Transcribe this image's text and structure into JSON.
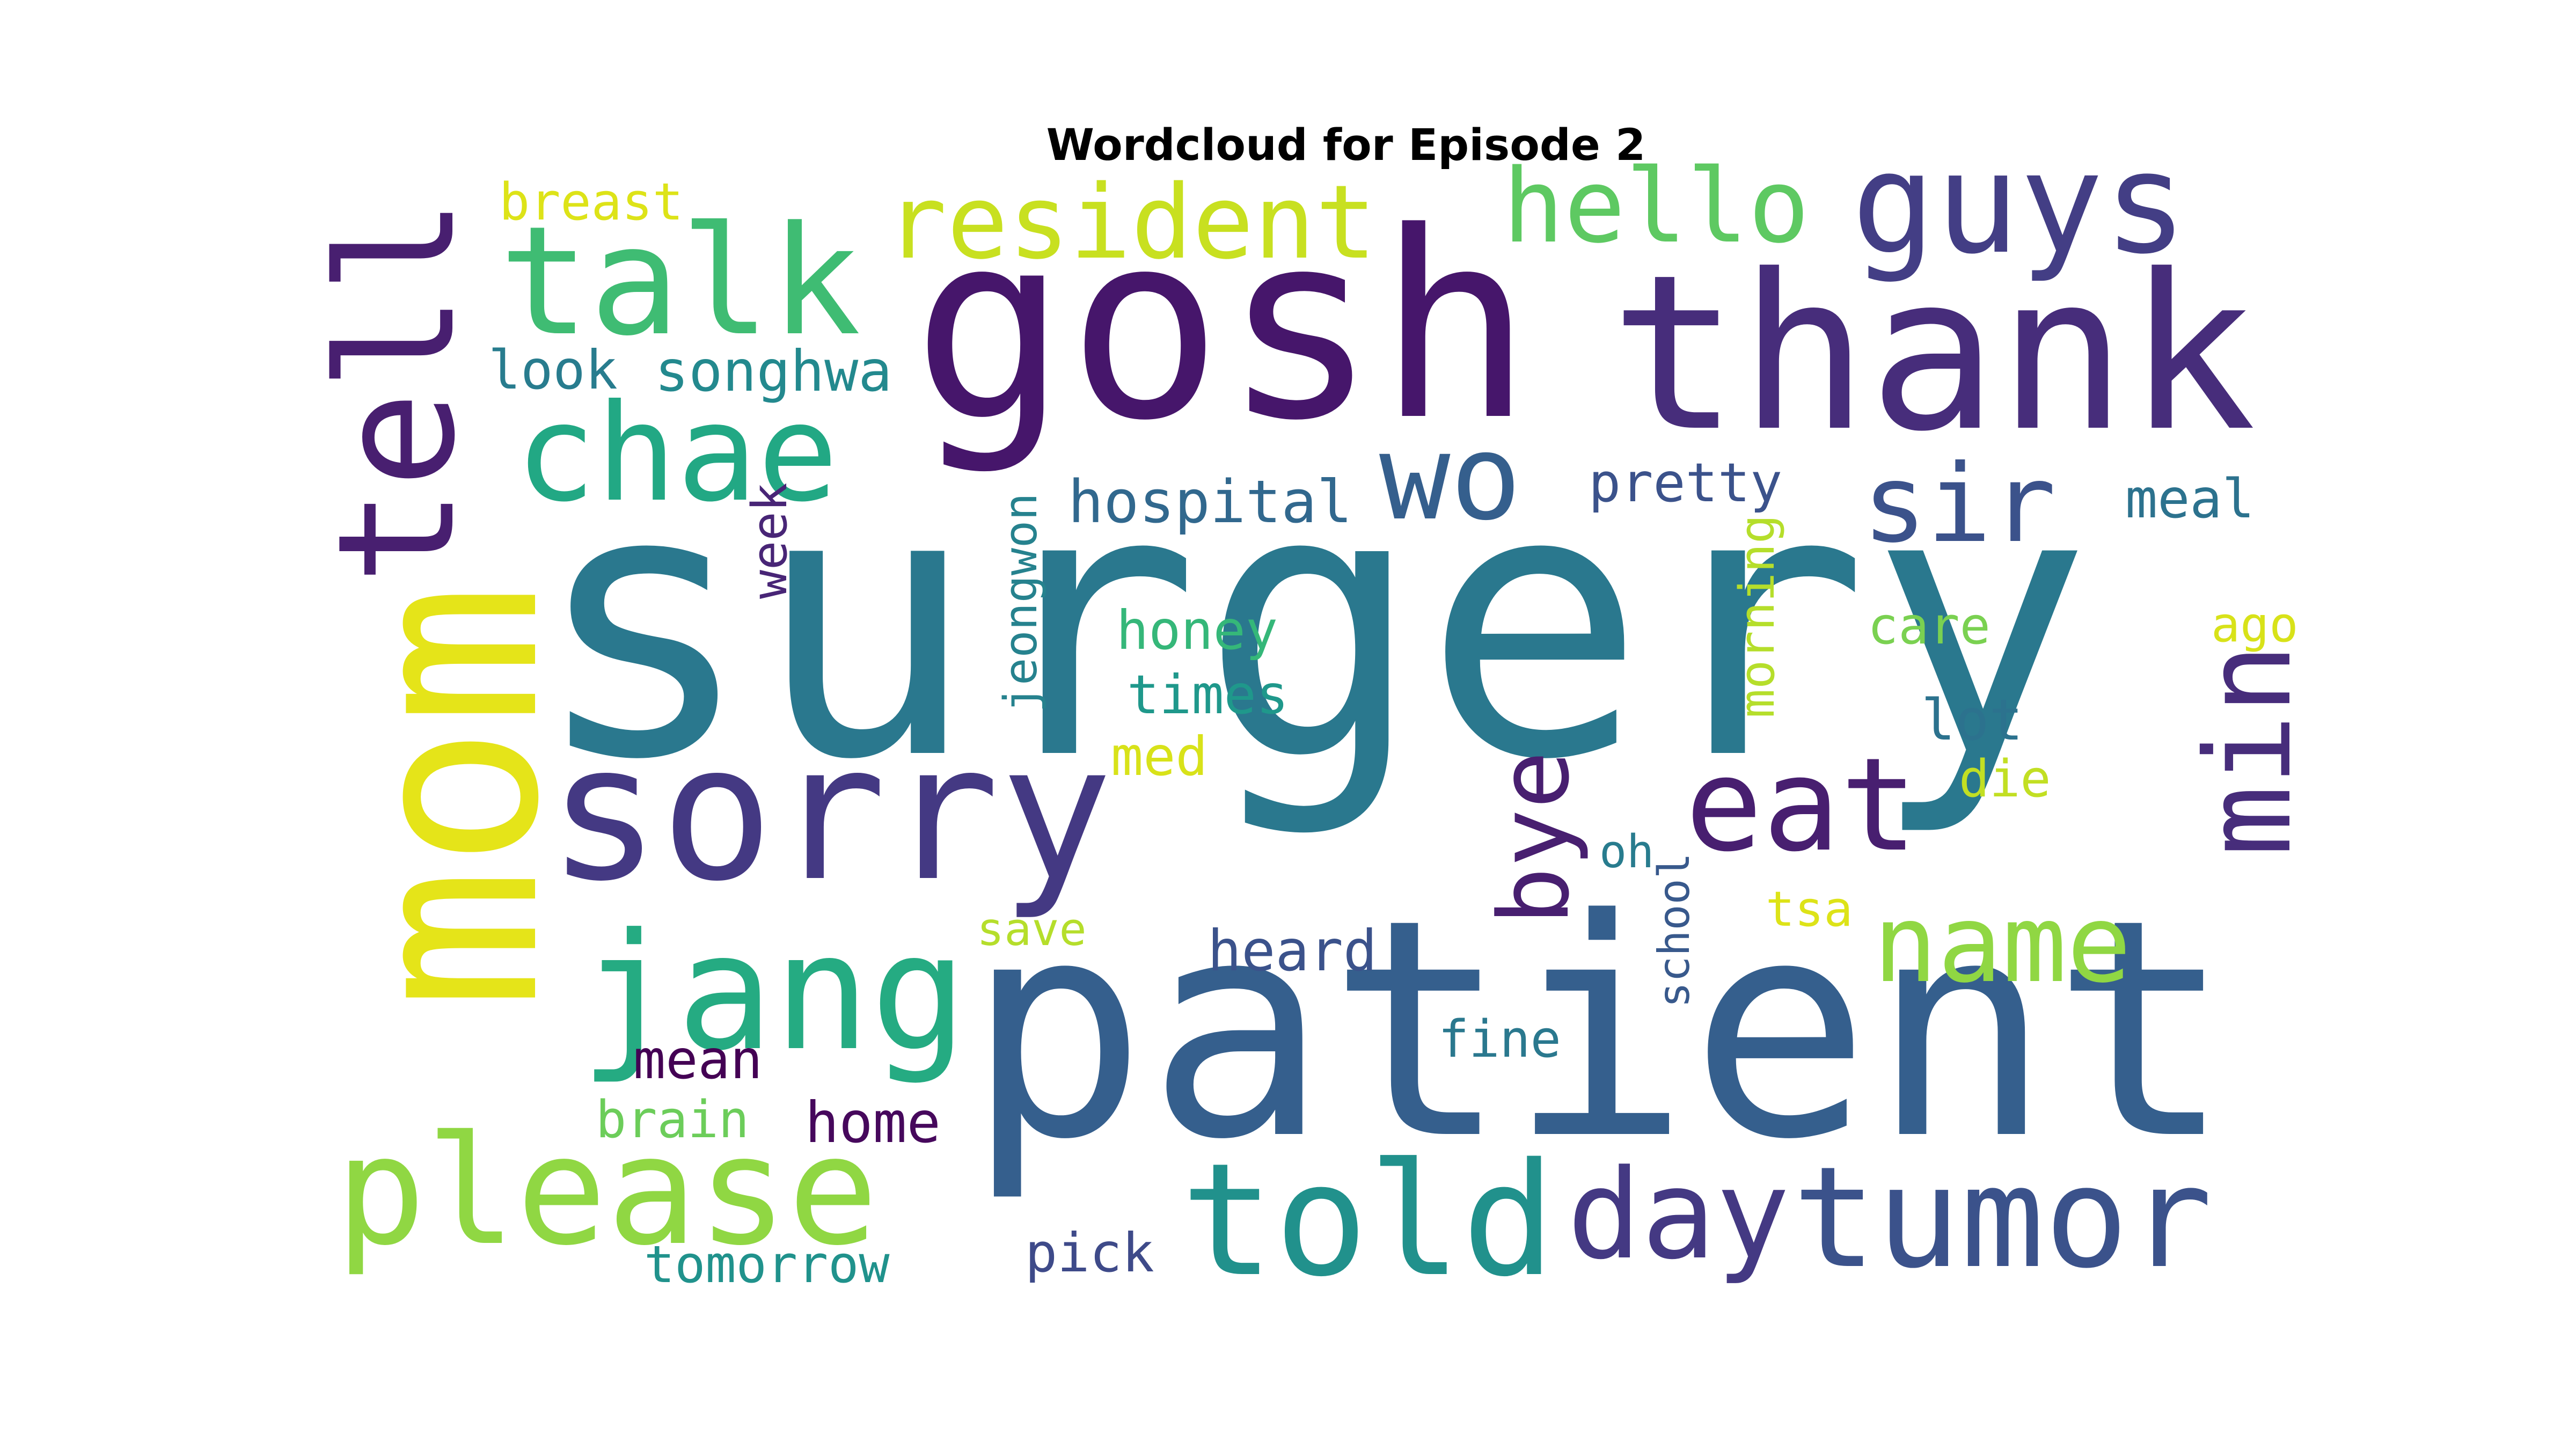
{
  "chart_data": {
    "type": "wordcloud",
    "title": "Wordcloud for Episode 2",
    "words": [
      {
        "text": "surgery",
        "color": "#2a788e"
      },
      {
        "text": "patient",
        "color": "#355f8d"
      },
      {
        "text": "gosh",
        "color": "#46166b"
      },
      {
        "text": "thank",
        "color": "#472d7b"
      },
      {
        "text": "mom",
        "color": "#e5e419"
      },
      {
        "text": "sorry",
        "color": "#443983"
      },
      {
        "text": "tell",
        "color": "#481f70"
      },
      {
        "text": "talk",
        "color": "#3fbc73"
      },
      {
        "text": "resident",
        "color": "#c8e020"
      },
      {
        "text": "hello",
        "color": "#5ec962"
      },
      {
        "text": "guys",
        "color": "#433e85"
      },
      {
        "text": "chae",
        "color": "#22a884"
      },
      {
        "text": "wo",
        "color": "#355f8d"
      },
      {
        "text": "sir",
        "color": "#3b528b"
      },
      {
        "text": "eat",
        "color": "#481f70"
      },
      {
        "text": "min",
        "color": "#472d7b"
      },
      {
        "text": "jang",
        "color": "#25ab82"
      },
      {
        "text": "please",
        "color": "#90d743"
      },
      {
        "text": "told",
        "color": "#21918c"
      },
      {
        "text": "day",
        "color": "#443983"
      },
      {
        "text": "tumor",
        "color": "#3b528b"
      },
      {
        "text": "name",
        "color": "#90d743"
      },
      {
        "text": "bye",
        "color": "#481f70"
      },
      {
        "text": "hospital",
        "color": "#31688e"
      },
      {
        "text": "songhwa",
        "color": "#23898e"
      },
      {
        "text": "look",
        "color": "#287c8e"
      },
      {
        "text": "breast",
        "color": "#dde318"
      },
      {
        "text": "pretty",
        "color": "#3b528b"
      },
      {
        "text": "meal",
        "color": "#2c728e"
      },
      {
        "text": "week",
        "color": "#482576"
      },
      {
        "text": "jeongwon",
        "color": "#26828e"
      },
      {
        "text": "honey",
        "color": "#35b779"
      },
      {
        "text": "times",
        "color": "#1f988b"
      },
      {
        "text": "med",
        "color": "#d8e219"
      },
      {
        "text": "morning",
        "color": "#b5de2b"
      },
      {
        "text": "care",
        "color": "#7ad151"
      },
      {
        "text": "ago",
        "color": "#d8e219"
      },
      {
        "text": "lot",
        "color": "#2c728e"
      },
      {
        "text": "die",
        "color": "#c2df23"
      },
      {
        "text": "oh",
        "color": "#287c8e"
      },
      {
        "text": "school",
        "color": "#38598c"
      },
      {
        "text": "tsa",
        "color": "#dde318"
      },
      {
        "text": "save",
        "color": "#b5de2b"
      },
      {
        "text": "heard",
        "color": "#3b528b"
      },
      {
        "text": "fine",
        "color": "#2a788e"
      },
      {
        "text": "mean",
        "color": "#440154"
      },
      {
        "text": "brain",
        "color": "#6ccd5a"
      },
      {
        "text": "home",
        "color": "#46085c"
      },
      {
        "text": "tomorrow",
        "color": "#20928c"
      },
      {
        "text": "pick",
        "color": "#3e4a89"
      }
    ]
  }
}
